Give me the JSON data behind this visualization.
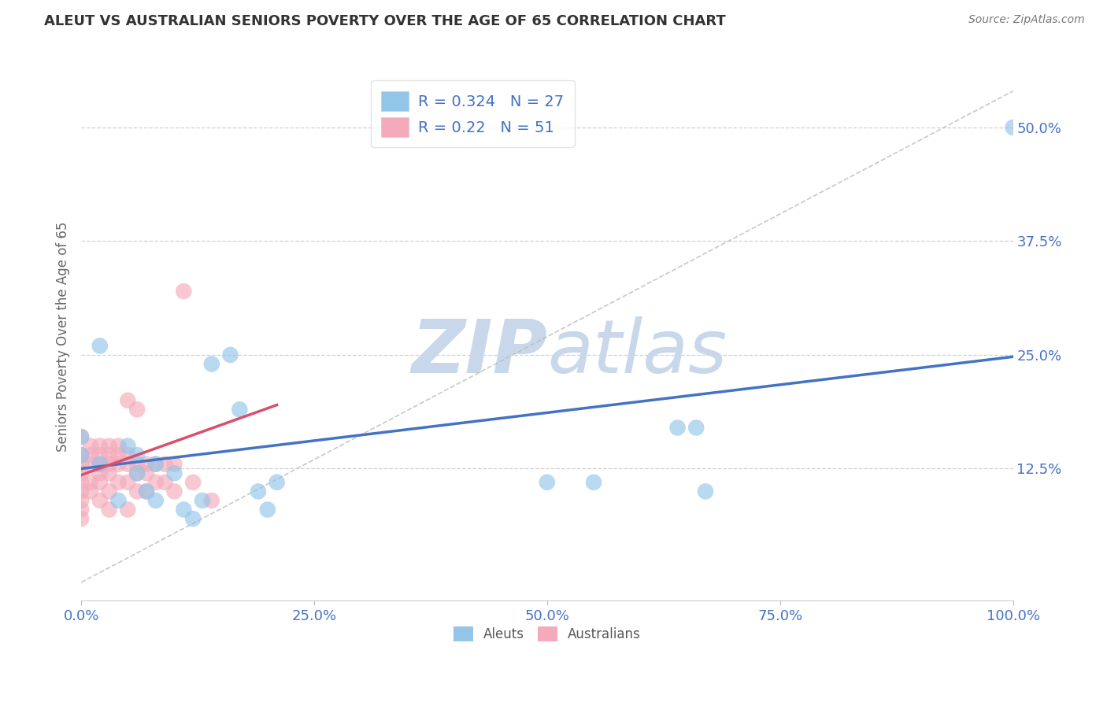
{
  "title": "ALEUT VS AUSTRALIAN SENIORS POVERTY OVER THE AGE OF 65 CORRELATION CHART",
  "source": "Source: ZipAtlas.com",
  "ylabel": "Seniors Poverty Over the Age of 65",
  "xlim": [
    0.0,
    1.0
  ],
  "ylim": [
    -0.02,
    0.56
  ],
  "xticks": [
    0.0,
    0.25,
    0.5,
    0.75,
    1.0
  ],
  "xtick_labels": [
    "0.0%",
    "25.0%",
    "50.0%",
    "75.0%",
    "100.0%"
  ],
  "ytick_positions": [
    0.125,
    0.25,
    0.375,
    0.5
  ],
  "ytick_labels": [
    "12.5%",
    "25.0%",
    "37.5%",
    "50.0%"
  ],
  "aleuts_R": 0.324,
  "aleuts_N": 27,
  "australians_R": 0.22,
  "australians_N": 51,
  "aleuts_color": "#92C5E8",
  "australians_color": "#F4AABB",
  "aleuts_line_color": "#4472C4",
  "australians_line_color": "#D94F6E",
  "diag_line_color": "#BBBBBB",
  "watermark_color": "#C8D8EA",
  "aleuts_x": [
    0.0,
    0.0,
    0.02,
    0.02,
    0.04,
    0.05,
    0.06,
    0.06,
    0.07,
    0.08,
    0.08,
    0.1,
    0.11,
    0.12,
    0.13,
    0.14,
    0.16,
    0.17,
    0.19,
    0.2,
    0.21,
    0.5,
    0.55,
    0.64,
    0.66,
    0.67,
    1.0
  ],
  "aleuts_y": [
    0.14,
    0.16,
    0.13,
    0.26,
    0.09,
    0.15,
    0.14,
    0.12,
    0.1,
    0.09,
    0.13,
    0.12,
    0.08,
    0.07,
    0.09,
    0.24,
    0.25,
    0.19,
    0.1,
    0.08,
    0.11,
    0.11,
    0.11,
    0.17,
    0.17,
    0.1,
    0.5
  ],
  "australians_x": [
    0.0,
    0.0,
    0.0,
    0.0,
    0.0,
    0.0,
    0.0,
    0.0,
    0.0,
    0.01,
    0.01,
    0.01,
    0.01,
    0.01,
    0.02,
    0.02,
    0.02,
    0.02,
    0.02,
    0.02,
    0.03,
    0.03,
    0.03,
    0.03,
    0.03,
    0.03,
    0.04,
    0.04,
    0.04,
    0.04,
    0.05,
    0.05,
    0.05,
    0.05,
    0.05,
    0.06,
    0.06,
    0.06,
    0.06,
    0.07,
    0.07,
    0.07,
    0.08,
    0.08,
    0.09,
    0.09,
    0.1,
    0.1,
    0.11,
    0.12,
    0.14
  ],
  "australians_y": [
    0.16,
    0.14,
    0.13,
    0.12,
    0.11,
    0.1,
    0.09,
    0.08,
    0.07,
    0.15,
    0.14,
    0.13,
    0.11,
    0.1,
    0.15,
    0.14,
    0.13,
    0.12,
    0.11,
    0.09,
    0.15,
    0.14,
    0.13,
    0.12,
    0.1,
    0.08,
    0.15,
    0.14,
    0.13,
    0.11,
    0.2,
    0.14,
    0.13,
    0.11,
    0.08,
    0.19,
    0.13,
    0.12,
    0.1,
    0.13,
    0.12,
    0.1,
    0.13,
    0.11,
    0.13,
    0.11,
    0.13,
    0.1,
    0.32,
    0.11,
    0.09
  ],
  "aleuts_line_x0": 0.0,
  "aleuts_line_y0": 0.125,
  "aleuts_line_x1": 1.0,
  "aleuts_line_y1": 0.248,
  "aus_line_x0": 0.0,
  "aus_line_y0": 0.118,
  "aus_line_x1": 0.21,
  "aus_line_y1": 0.195,
  "background_color": "#FFFFFF",
  "grid_color": "#CCCCCC",
  "title_color": "#333333",
  "tick_color": "#4472C4",
  "legend_text_color": "#4472C4",
  "legend_label_color": "#555555"
}
